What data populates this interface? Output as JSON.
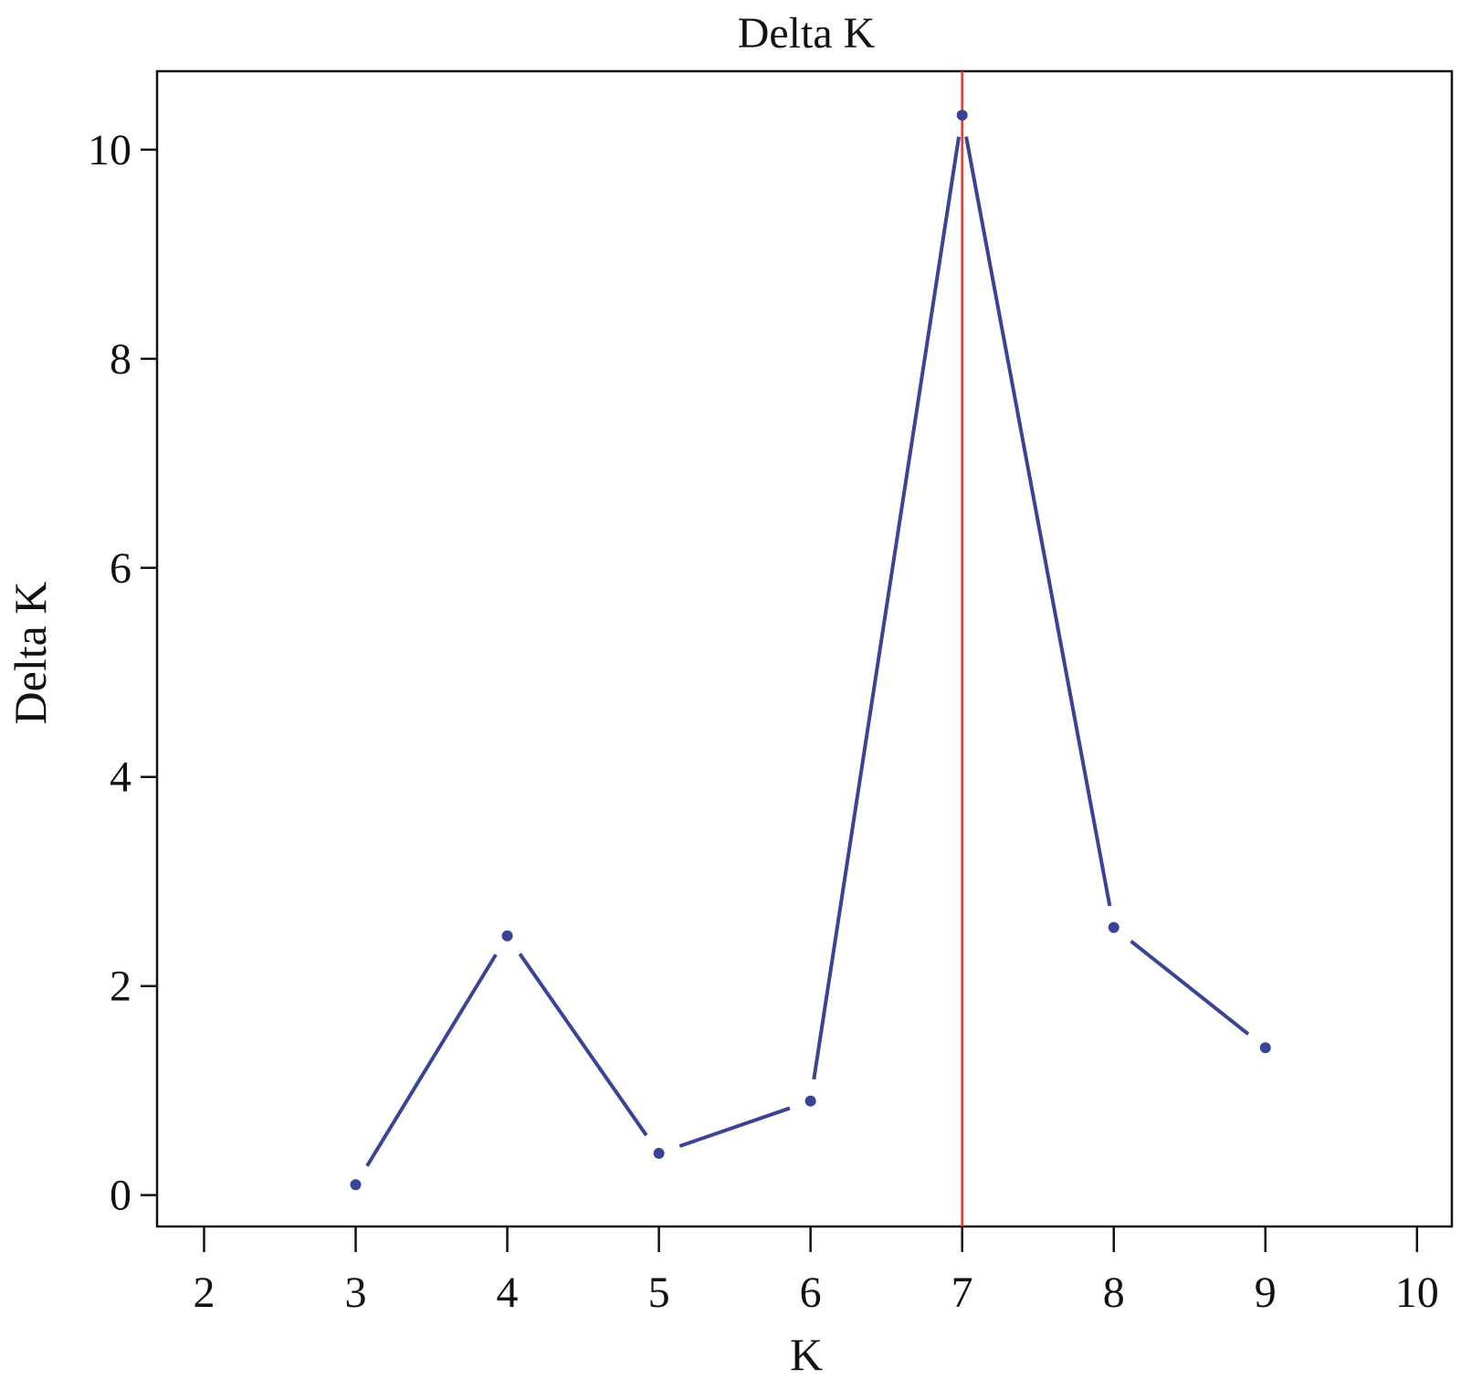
{
  "chart_data": {
    "type": "line",
    "title": "Delta K",
    "xlabel": "K",
    "ylabel": "Delta K",
    "x_ticks": [
      2,
      3,
      4,
      5,
      6,
      7,
      8,
      9,
      10
    ],
    "y_ticks": [
      0,
      2,
      4,
      6,
      8,
      10
    ],
    "xlim": [
      1.69,
      10.23
    ],
    "ylim": [
      -0.3,
      10.75
    ],
    "series": [
      {
        "x": [
          3,
          4,
          5,
          6,
          7,
          8,
          9
        ],
        "y": [
          0.1,
          2.48,
          0.4,
          0.9,
          10.33,
          2.56,
          1.41
        ]
      }
    ],
    "reference_line": {
      "orientation": "vertical",
      "x": 7
    },
    "grid": false,
    "legend": "none",
    "colors": {
      "series": "#3a4494",
      "reference_line": "#e0392c",
      "axes": "#111111"
    }
  }
}
